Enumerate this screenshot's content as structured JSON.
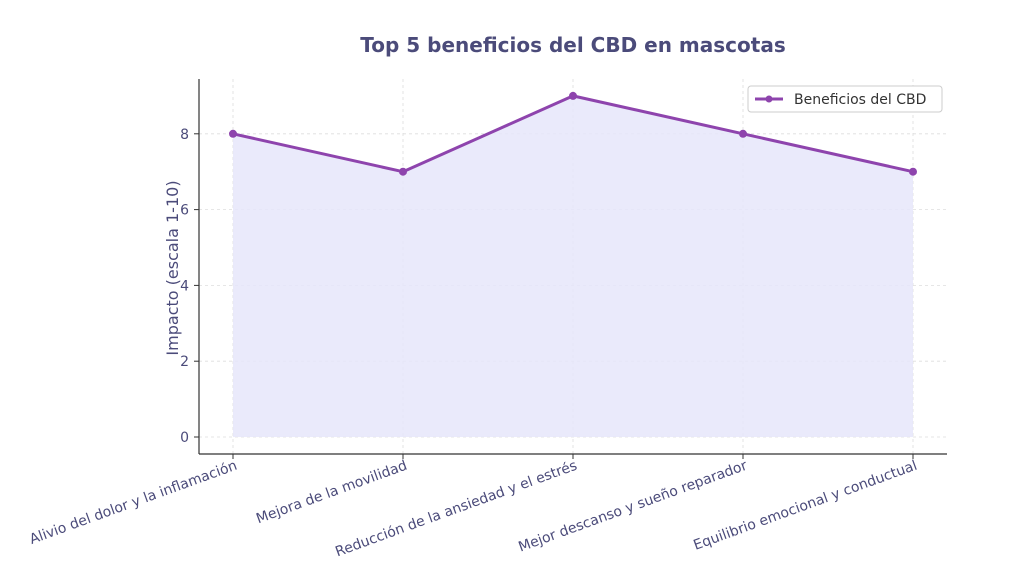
{
  "chart_data": {
    "type": "area",
    "title": "Top 5 beneficios del CBD en mascotas",
    "xlabel": "",
    "ylabel": "Impacto (escala 1-10)",
    "categories": [
      "Alivio del dolor y la inflamación",
      "Mejora de la movilidad",
      "Reducción de la ansiedad y el estrés",
      "Mejor descanso y sueño reparador",
      "Equilibrio emocional y conductual"
    ],
    "series": [
      {
        "name": "Beneficios del CBD",
        "values": [
          8,
          7,
          9,
          8,
          7
        ]
      }
    ],
    "ylim": [
      -0.45,
      9.45
    ],
    "yticks": [
      0,
      2,
      4,
      6,
      8
    ],
    "grid": true,
    "legend_position": "top-right"
  },
  "colors": {
    "line": "#8e44ad",
    "fill": "#e6e6fa",
    "text": "#4b4b7a",
    "grid": "#dddddd",
    "axis": "#333333"
  }
}
